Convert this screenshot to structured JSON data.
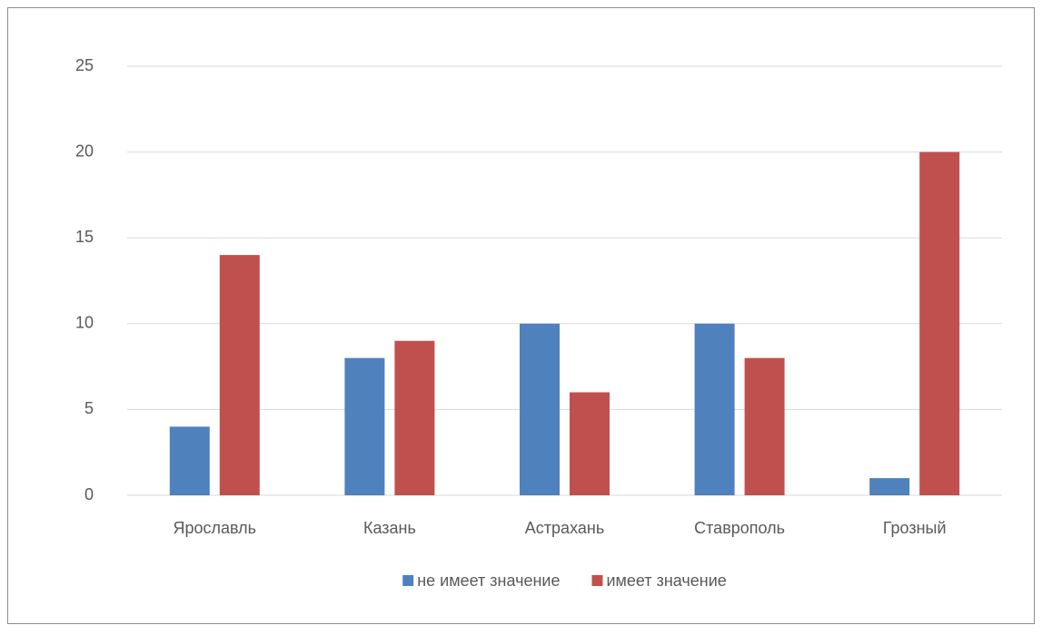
{
  "chart_data": {
    "type": "bar",
    "categories": [
      "Ярославль",
      "Казань",
      "Астрахань",
      "Ставрополь",
      "Грозный"
    ],
    "series": [
      {
        "name": "не имеет значение",
        "color": "#4f81bd",
        "values": [
          4,
          8,
          10,
          10,
          1
        ]
      },
      {
        "name": "имеет значение",
        "color": "#c0504d",
        "values": [
          14,
          9,
          6,
          8,
          20
        ]
      }
    ],
    "ylim": [
      0,
      25
    ],
    "yticks": [
      0,
      5,
      10,
      15,
      20,
      25
    ],
    "grid": true,
    "legend": "bottom"
  }
}
